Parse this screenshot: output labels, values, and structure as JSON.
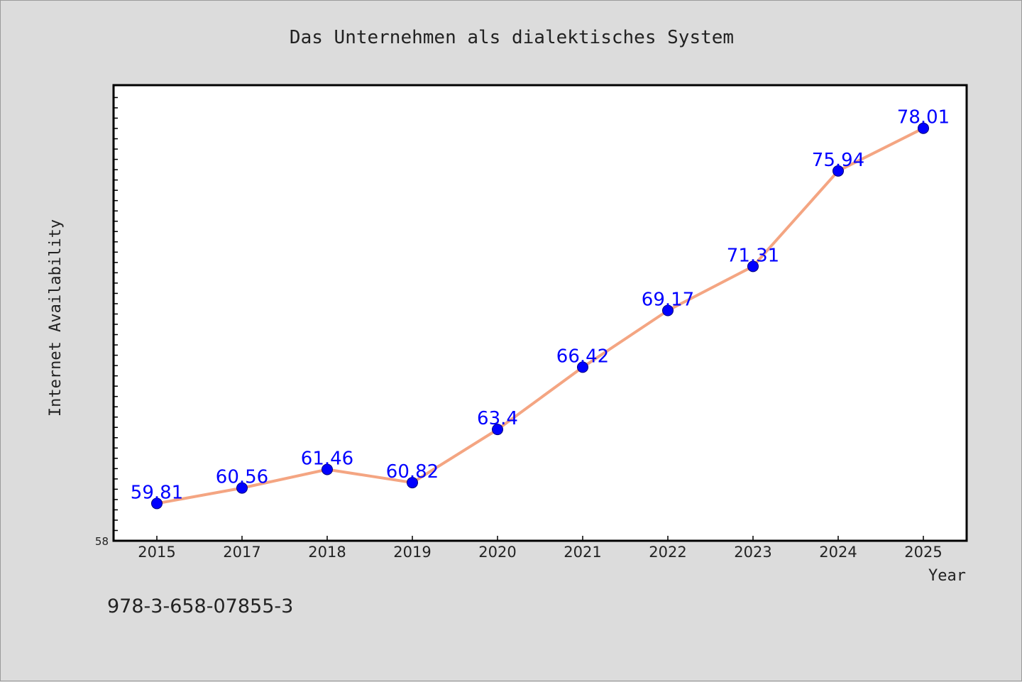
{
  "chart_data": {
    "type": "line",
    "title": "Das Unternehmen als dialektisches System",
    "xlabel": "Year",
    "ylabel": "Internet Availability",
    "categories": [
      "2015",
      "2017",
      "2018",
      "2019",
      "2020",
      "2021",
      "2022",
      "2023",
      "2024",
      "2025"
    ],
    "series": [
      {
        "values": [
          59.81,
          60.56,
          61.46,
          60.82,
          63.4,
          66.42,
          69.17,
          71.31,
          75.94,
          78.01
        ],
        "labels": [
          "59.81",
          "60.56",
          "61.46",
          "60.82",
          "63.4",
          "66.42",
          "69.17",
          "71.31",
          "75.94",
          "78.01"
        ]
      }
    ],
    "ylim": [
      58,
      80.1
    ],
    "y_tick_label": "58",
    "grid": false,
    "legend": "none",
    "line_color": "#f4a582",
    "marker_color": "#0000ff",
    "label_color": "#0000ff"
  },
  "footer": {
    "isbn": "978-3-658-07855-3"
  }
}
